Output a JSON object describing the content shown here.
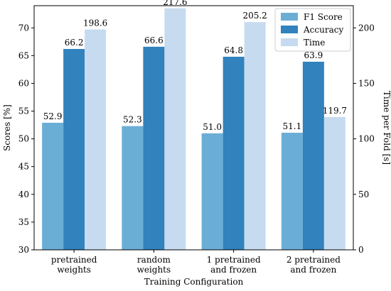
{
  "chart_data": {
    "type": "bar",
    "categories": [
      [
        "pretrained",
        "weights"
      ],
      [
        "random",
        "weights"
      ],
      [
        "1 pretrained",
        "and frozen"
      ],
      [
        "2 pretrained",
        "and frozen"
      ]
    ],
    "series": [
      {
        "name": "F1 Score",
        "axis": "left",
        "color": "#6aaed6",
        "values": [
          52.9,
          52.3,
          51.0,
          51.1
        ],
        "labels": [
          "52.9",
          "52.3",
          "51.0",
          "51.1"
        ]
      },
      {
        "name": "Accuracy",
        "axis": "left",
        "color": "#3182bd",
        "values": [
          66.2,
          66.6,
          64.8,
          63.9
        ],
        "labels": [
          "66.2",
          "66.6",
          "64.8",
          "63.9"
        ]
      },
      {
        "name": "Time",
        "axis": "right",
        "color": "#c6dbef",
        "values": [
          198.6,
          217.6,
          205.2,
          119.7
        ],
        "labels": [
          "198.6",
          "217.6",
          "205.2",
          "119.7"
        ]
      }
    ],
    "xlabel": "Training Configuration",
    "ylabel": "Scores [%]",
    "y2label": "Time per Fold [s]",
    "ylim": [
      30,
      74
    ],
    "y2lim": [
      0,
      220
    ],
    "yticks": [
      30,
      35,
      40,
      45,
      50,
      55,
      60,
      65,
      70
    ],
    "y2ticks": [
      0,
      50,
      100,
      150,
      200
    ],
    "grid": false,
    "legend_position": "top-right"
  }
}
